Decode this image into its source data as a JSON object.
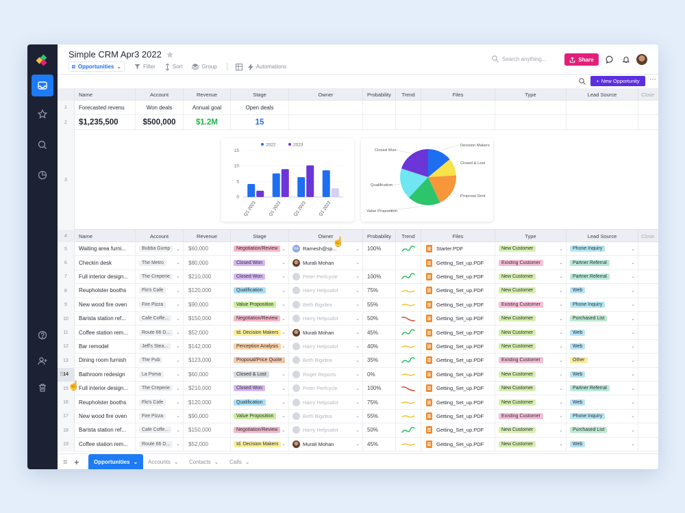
{
  "app": {
    "title": "Simple CRM Apr3 2022",
    "star_icon": "star-icon",
    "colors": {
      "sidebar": "#1c2233",
      "accent": "#1e7bf6",
      "share": "#e2207a",
      "new_opportunity": "#5b2ee0"
    }
  },
  "sidebar": {
    "items": [
      {
        "name": "inbox-icon",
        "active": true
      },
      {
        "name": "star-icon"
      },
      {
        "name": "search-icon"
      },
      {
        "name": "pie-chart-icon"
      },
      {
        "name": "help-icon"
      },
      {
        "name": "add-user-icon"
      },
      {
        "name": "trash-icon"
      }
    ]
  },
  "toolbar": {
    "view_label": "Opportunities",
    "filter_label": "Filter",
    "sort_label": "Sort",
    "group_label": "Group",
    "automations_label": "Automations",
    "search_placeholder": "Search anything...",
    "share_label": "Share",
    "new_opportunity_label": "New Opportunity"
  },
  "summary": {
    "headers": [
      "Name",
      "Account",
      "Revenue",
      "Stage",
      "Owner",
      "Probability",
      "Trend",
      "Files",
      "Type",
      "Lead Source",
      "Close"
    ],
    "row1": [
      "Forecasted revenu",
      "Won deals",
      "Annual goal",
      "Open deals"
    ],
    "row2": [
      "$1,235,500",
      "$500,000",
      "$1.2M",
      "15"
    ]
  },
  "chart_data": [
    {
      "type": "bar",
      "categories": [
        "Q1 2023",
        "Q1 2023",
        "Q1 2023",
        "Q1 2023"
      ],
      "series": [
        {
          "name": "2022",
          "values": [
            4.2,
            7.6,
            6.4,
            8.6
          ],
          "color": "#1e6ef2"
        },
        {
          "name": "2023",
          "values": [
            2,
            9,
            10.2,
            2.8
          ],
          "color": "#6b35d8"
        }
      ],
      "yticks": [
        0,
        5,
        10,
        15
      ],
      "ylim": [
        0,
        15
      ],
      "legend": "top-center"
    },
    {
      "type": "pie",
      "labels": [
        "Decision Makers",
        "Closed & Lost",
        "Proposal Sent",
        "Value Proposition",
        "Qualification",
        "Closed Won"
      ],
      "values": [
        14,
        10,
        19,
        19,
        18,
        20
      ],
      "colors": [
        "#1e6ef2",
        "#f7e24a",
        "#f7973a",
        "#2cc56b",
        "#6fe6f2",
        "#6b35d8"
      ]
    }
  ],
  "table": {
    "row_numbers": [
      "1",
      "2",
      "3",
      "4"
    ],
    "headers": [
      "Name",
      "Account",
      "Revenue",
      "Stage",
      "Owner",
      "Probability",
      "Trend",
      "Files",
      "Type",
      "Lead Source",
      "Close"
    ],
    "rows": [
      {
        "num": "5",
        "name": "Waiting area furni...",
        "account": "Bubba Gump",
        "revenue": "$60,000",
        "stage": "Negotiation/Review",
        "owner": "Ramesh@sp...",
        "owner_av": "RA",
        "prob": "100%",
        "trend": "up",
        "file": "Starter.PDF",
        "type": "New Customer",
        "lead": "Phone Inquiry"
      },
      {
        "num": "6",
        "name": "Checkin desk",
        "account": "The Metro",
        "revenue": "$80,000",
        "stage": "Closed Won",
        "owner": "Murali Mohan",
        "owner_av": "",
        "prob": "",
        "trend": "",
        "file": "Getting_Set_up.PDF",
        "type": "Existing Customer",
        "lead": "Partner Referral"
      },
      {
        "num": "7",
        "name": "Full interior design...",
        "account": "The Creperie",
        "revenue": "$210,000",
        "stage": "Closed Won",
        "owner": "Peter Perfcycle",
        "owner_av": "",
        "prob": "100%",
        "trend": "up",
        "file": "Getting_Set_up.PDF",
        "type": "New Customer",
        "lead": "Partner Referral"
      },
      {
        "num": "8",
        "name": "Reupholster booths",
        "account": "Flo's Cafe",
        "revenue": "$120,000",
        "stage": "Qualification",
        "owner": "Harry Helpsalot",
        "owner_av": "",
        "prob": "75%",
        "trend": "flat",
        "file": "Getting_Set_up.PDF",
        "type": "New Customer",
        "lead": "Web"
      },
      {
        "num": "9",
        "name": "New wood fire oven",
        "account": "Fire Pizza",
        "revenue": "$90,000",
        "stage": "Value Proposition",
        "owner": "Beth Bigidea",
        "owner_av": "",
        "prob": "55%",
        "trend": "flat",
        "file": "Getting_Set_up.PDF",
        "type": "Existing Customer",
        "lead": "Phone Inquiry"
      },
      {
        "num": "10",
        "name": "Barista station ref...",
        "account": "Cafe Coffe...",
        "revenue": "$150,000",
        "stage": "Negotiation/Review",
        "owner": "Harry Helpsalot",
        "owner_av": "",
        "prob": "50%",
        "trend": "down",
        "file": "Getting_Set_up.PDF",
        "type": "New Customer",
        "lead": "Purchased List"
      },
      {
        "num": "11",
        "name": "Coffee station rem...",
        "account": "Route 66 D...",
        "revenue": "$52,000",
        "stage": "Id. Decision Makers",
        "owner": "Murali Mohan",
        "owner_av": "",
        "prob": "45%",
        "trend": "up",
        "file": "Getting_Set_up.PDF",
        "type": "New Customer",
        "lead": "Web"
      },
      {
        "num": "12",
        "name": "Bar remodel",
        "account": "Jeff's Stea...",
        "revenue": "$142,000",
        "stage": "Perception Analysis",
        "owner": "Harry Helpsalot",
        "owner_av": "",
        "prob": "40%",
        "trend": "flat",
        "file": "Getting_Set_up.PDF",
        "type": "New Customer",
        "lead": "Web"
      },
      {
        "num": "13",
        "name": "Dining room furnish",
        "account": "The Pub",
        "revenue": "$123,000",
        "stage": "Proposal/Price Quote",
        "owner": "Beth Bigidea",
        "owner_av": "",
        "prob": "35%",
        "trend": "up",
        "file": "Getting_Set_up.PDF",
        "type": "Existing Customer",
        "lead": "Other"
      },
      {
        "num": "14",
        "name": "Bathroom redesign",
        "account": "La Poma",
        "revenue": "$60,000",
        "stage": "Closed & Lost",
        "owner": "Roger Reports",
        "owner_av": "",
        "prob": "0%",
        "trend": "flat",
        "file": "Getting_Set_up.PDF",
        "type": "New Customer",
        "lead": "Web"
      },
      {
        "num": "15",
        "name": "Full interior design...",
        "account": "The Creperie",
        "revenue": "$210,000",
        "stage": "Closed Won",
        "owner": "Peter Perfcycle",
        "owner_av": "",
        "prob": "100%",
        "trend": "down",
        "file": "Getting_Set_up.PDF",
        "type": "New Customer",
        "lead": "Partner Referral"
      },
      {
        "num": "16",
        "name": "Reupholster booths",
        "account": "Flo's Cafe",
        "revenue": "$120,000",
        "stage": "Qualification",
        "owner": "Harry Helpsalot",
        "owner_av": "",
        "prob": "75%",
        "trend": "flat",
        "file": "Getting_Set_up.PDF",
        "type": "New Customer",
        "lead": "Web"
      },
      {
        "num": "17",
        "name": "New wood fire oven",
        "account": "Fire Pizza",
        "revenue": "$90,000",
        "stage": "Value Proposition",
        "owner": "Beth Bigidea",
        "owner_av": "",
        "prob": "55%",
        "trend": "flat",
        "file": "Getting_Set_up.PDF",
        "type": "Existing Customer",
        "lead": "Phone Inquiry"
      },
      {
        "num": "18",
        "name": "Barista station ref...",
        "account": "Cafe Coffe...",
        "revenue": "$150,000",
        "stage": "Negotiation/Review",
        "owner": "Harry Helpsalot",
        "owner_av": "",
        "prob": "50%",
        "trend": "up",
        "file": "Getting_Set_up.PDF",
        "type": "New Customer",
        "lead": "Purchased List"
      },
      {
        "num": "19",
        "name": "Coffee station rem...",
        "account": "Route 66 D...",
        "revenue": "$52,000",
        "stage": "Id. Decision Makers",
        "owner": "Murali Mohan",
        "owner_av": "",
        "prob": "45%",
        "trend": "flat",
        "file": "Getting_Set_up.PDF",
        "type": "New Customer",
        "lead": "Web"
      }
    ]
  },
  "stage_colors": {
    "Negotiation/Review": "#f5b8c9",
    "Closed Won": "#d6b8f2",
    "Qualification": "#a8e0f5",
    "Value Proposition": "#cdeea0",
    "Id. Decision Makers": "#f9ef9c",
    "Perception Analysis": "#fbd2a4",
    "Proposal/Price Quote": "#fbc9ad",
    "Closed & Lost": "#d8dbe0"
  },
  "type_colors": {
    "New Customer": "#d7efb0",
    "Existing Customer": "#f6bfd6"
  },
  "lead_colors": {
    "Phone Inquiry": "#b5e6f2",
    "Partner Referral": "#b9e8d9",
    "Web": "#b9e3f3",
    "Purchased List": "#bfead0",
    "Other": "#f9ec9e"
  },
  "bottom_tabs": [
    "Opportunities",
    "Accounts",
    "Contacts",
    "Calls"
  ]
}
